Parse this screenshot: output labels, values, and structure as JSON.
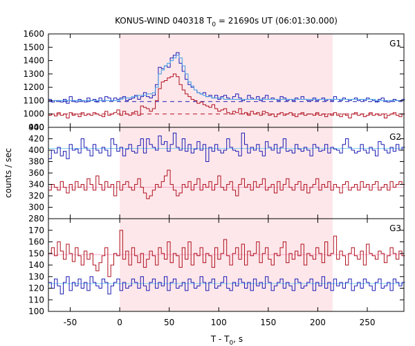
{
  "chart_data": {
    "type": "line",
    "title": {
      "pre": "KONUS-WIND 040318 T",
      "sub": "0",
      "post": " = 21690s UT (06:01:30.000)"
    },
    "xlabel": {
      "pre": "T - T",
      "sub": "0",
      "post": ", s"
    },
    "ylabel": "counts / sec",
    "xlim": [
      -72,
      287
    ],
    "xticks": [
      -50,
      0,
      50,
      100,
      150,
      200,
      250
    ],
    "shaded_interval": [
      0,
      215
    ],
    "shaded_color": "#fde7ea",
    "step": 3,
    "colors": {
      "blue": "#1a1ab4",
      "red": "#b0101e",
      "light_blue": "#3b9be8",
      "light_blue_bg": "#7fd0f0",
      "pink_bg": "#f6a9c8"
    },
    "panels": [
      {
        "label": "G1",
        "ylim": [
          900,
          1600
        ],
        "yticks": [
          900,
          1000,
          1100,
          1200,
          1300,
          1400,
          1500,
          1600
        ],
        "background_levels": [
          {
            "value": 1093,
            "color": "#1a1ab4",
            "dashed": true
          },
          {
            "value": 1000,
            "color": "#b0101e",
            "dashed": true
          }
        ],
        "series": [
          {
            "name": "total",
            "color": "#1a1ab4",
            "start": -72,
            "values": [
              1110,
              1090,
              1100,
              1100,
              1090,
              1110,
              1080,
              1130,
              1100,
              1090,
              1110,
              1100,
              1090,
              1120,
              1100,
              1110,
              1090,
              1120,
              1100,
              1130,
              1120,
              1100,
              1120,
              1110,
              1120,
              1130,
              1100,
              1110,
              1120,
              1140,
              1110,
              1130,
              1160,
              1130,
              1120,
              1140,
              1220,
              1350,
              1340,
              1360,
              1350,
              1420,
              1440,
              1460,
              1380,
              1320,
              1260,
              1220,
              1200,
              1180,
              1160,
              1150,
              1160,
              1130,
              1140,
              1120,
              1140,
              1110,
              1130,
              1140,
              1120,
              1110,
              1130,
              1150,
              1120,
              1100,
              1110,
              1140,
              1120,
              1110,
              1130,
              1100,
              1120,
              1140,
              1110,
              1120,
              1110,
              1100,
              1130,
              1120,
              1100,
              1110,
              1100,
              1120,
              1110,
              1130,
              1110,
              1100,
              1100,
              1120,
              1100,
              1110,
              1120,
              1100,
              1110,
              1100,
              1130,
              1110,
              1100,
              1120,
              1110,
              1100,
              1110,
              1120,
              1100,
              1110,
              1100,
              1120,
              1110,
              1100,
              1090,
              1110,
              1120,
              1100,
              1090,
              1100,
              1110,
              1100,
              1100,
              1110
            ]
          },
          {
            "name": "g1-fit",
            "color": "#3b9be8",
            "start": -72,
            "values": [
              1100,
              1100,
              1100,
              1100,
              1100,
              1100,
              1100,
              1100,
              1100,
              1100,
              1100,
              1100,
              1100,
              1100,
              1100,
              1100,
              1100,
              1100,
              1100,
              1100,
              1100,
              1100,
              1100,
              1100,
              1110,
              1120,
              1120,
              1120,
              1130,
              1130,
              1140,
              1140,
              1140,
              1150,
              1150,
              1160,
              1200,
              1300,
              1330,
              1360,
              1380,
              1400,
              1420,
              1440,
              1420,
              1360,
              1300,
              1240,
              1210,
              1180,
              1160,
              1150,
              1140,
              1130,
              1130,
              1120,
              1120,
              1120,
              1120,
              1110,
              1110,
              1110,
              1110,
              1110,
              1110,
              1110,
              1110,
              1110,
              1110,
              1110,
              1110,
              1110,
              1110,
              1110,
              1110,
              1110,
              1110,
              1110,
              1110,
              1110,
              1110,
              1110,
              1110,
              1110,
              1110,
              1110,
              1110,
              1110,
              1110,
              1110,
              1110,
              1110,
              1110,
              1110,
              1110,
              1110,
              1110,
              1110,
              1110,
              1110,
              1110,
              1110,
              1110,
              1110,
              1110,
              1110,
              1110,
              1110,
              1110,
              1110,
              1100,
              1100,
              1100,
              1100,
              1100,
              1100,
              1100,
              1100,
              1100,
              1100
            ]
          },
          {
            "name": "hard",
            "color": "#b0101e",
            "start": -72,
            "values": [
              990,
              1000,
              985,
              1010,
              990,
              1000,
              970,
              1010,
              990,
              1000,
              980,
              1010,
              990,
              1000,
              990,
              1010,
              1000,
              990,
              980,
              1020,
              990,
              1000,
              1010,
              1030,
              990,
              1020,
              1000,
              990,
              1010,
              1020,
              990,
              1060,
              1050,
              1040,
              1020,
              1040,
              1100,
              1190,
              1240,
              1250,
              1270,
              1280,
              1300,
              1280,
              1220,
              1180,
              1150,
              1130,
              1110,
              1100,
              1080,
              1090,
              1070,
              1060,
              1050,
              1070,
              1040,
              1020,
              1030,
              1040,
              1010,
              1000,
              1020,
              1010,
              1040,
              1000,
              1010,
              990,
              1020,
              1000,
              1010,
              990,
              1020,
              1010,
              990,
              1000,
              980,
              1000,
              1010,
              990,
              1000,
              1010,
              990,
              980,
              1000,
              1010,
              990,
              1000,
              1000,
              990,
              1010,
              990,
              1000,
              980,
              1000,
              990,
              1010,
              990,
              980,
              1000,
              990,
              970,
              1000,
              1010,
              990,
              1000,
              980,
              990,
              1010,
              990,
              1000,
              990,
              1000,
              970,
              990,
              1000,
              1010,
              990,
              980,
              1000
            ]
          }
        ]
      },
      {
        "label": "G2",
        "ylim": [
          280,
          440
        ],
        "yticks": [
          280,
          300,
          320,
          340,
          360,
          380,
          400,
          420,
          440
        ],
        "background_levels": [
          {
            "value": 403,
            "color": "#7fd0f0",
            "dashed": false
          },
          {
            "value": 335,
            "color": "#f6a9c8",
            "dashed": false
          }
        ],
        "series": [
          {
            "name": "g2-blue",
            "color": "#1a1ab4",
            "start": -72,
            "values": [
              385,
              400,
              395,
              405,
              390,
              398,
              385,
              410,
              400,
              402,
              395,
              420,
              405,
              400,
              390,
              410,
              400,
              395,
              405,
              400,
              390,
              420,
              410,
              398,
              405,
              390,
              402,
              410,
              398,
              395,
              408,
              420,
              395,
              420,
              410,
              405,
              400,
              425,
              410,
              415,
              398,
              410,
              430,
              405,
              400,
              420,
              398,
              410,
              395,
              402,
              415,
              400,
              410,
              380,
              405,
              398,
              410,
              400,
              395,
              400,
              420,
              405,
              400,
              398,
              390,
              430,
              410,
              395,
              405,
              400,
              410,
              398,
              390,
              415,
              405,
              400,
              410,
              395,
              405,
              420,
              398,
              400,
              395,
              410,
              402,
              398,
              405,
              400,
              390,
              410,
              405,
              398,
              400,
              410,
              395,
              405,
              402,
              400,
              395,
              410,
              420,
              405,
              400,
              395,
              398,
              410,
              400,
              395,
              405,
              400,
              390,
              415,
              410,
              400,
              395,
              405,
              398,
              410,
              400,
              405
            ]
          },
          {
            "name": "g2-red",
            "color": "#b0101e",
            "start": -72,
            "values": [
              330,
              340,
              335,
              330,
              345,
              335,
              325,
              340,
              330,
              345,
              335,
              340,
              330,
              350,
              340,
              330,
              355,
              340,
              330,
              345,
              335,
              340,
              320,
              345,
              330,
              340,
              345,
              335,
              330,
              340,
              350,
              335,
              325,
              315,
              320,
              330,
              340,
              335,
              345,
              355,
              365,
              340,
              330,
              320,
              325,
              340,
              335,
              345,
              330,
              340,
              350,
              330,
              340,
              335,
              345,
              330,
              340,
              355,
              335,
              330,
              340,
              345,
              330,
              320,
              340,
              350,
              335,
              340,
              330,
              345,
              335,
              340,
              350,
              330,
              335,
              340,
              325,
              345,
              330,
              340,
              350,
              335,
              330,
              340,
              345,
              330,
              340,
              325,
              335,
              340,
              350,
              330,
              340,
              335,
              345,
              330,
              340,
              335,
              325,
              340,
              345,
              330,
              335,
              340,
              330,
              345,
              335,
              340,
              330,
              340,
              345,
              330,
              335,
              340,
              330,
              345,
              335,
              340,
              345,
              340
            ]
          }
        ]
      },
      {
        "label": "G3",
        "ylim": [
          100,
          180
        ],
        "yticks": [
          100,
          110,
          120,
          130,
          140,
          150,
          160,
          170
        ],
        "background_levels": [
          {
            "value": 124,
            "color": "#7fd0f0",
            "dashed": false
          },
          {
            "value": 149,
            "color": "#f6a9c8",
            "dashed": false
          }
        ],
        "series": [
          {
            "name": "g3-red",
            "color": "#b0101e",
            "start": -72,
            "values": [
              150,
              155,
              148,
              160,
              152,
              145,
              158,
              150,
              143,
              155,
              148,
              140,
              152,
              145,
              150,
              140,
              135,
              142,
              148,
              155,
              130,
              140,
              150,
              148,
              170,
              145,
              152,
              140,
              155,
              148,
              142,
              150,
              138,
              145,
              152,
              148,
              140,
              155,
              150,
              145,
              160,
              142,
              150,
              148,
              138,
              155,
              145,
              160,
              140,
              150,
              148,
              155,
              142,
              150,
              148,
              138,
              155,
              145,
              150,
              162,
              148,
              140,
              150,
              155,
              145,
              158,
              140,
              152,
              148,
              150,
              160,
              142,
              150,
              155,
              145,
              140,
              150,
              148,
              155,
              160,
              142,
              150,
              145,
              152,
              148,
              158,
              140,
              150,
              148,
              145,
              155,
              150,
              142,
              160,
              148,
              150,
              165,
              145,
              152,
              148,
              140,
              150,
              155,
              148,
              145,
              152,
              140,
              158,
              150,
              148,
              145,
              152,
              150,
              142,
              148,
              155,
              150,
              145,
              152,
              148
            ]
          },
          {
            "name": "g3-blue",
            "color": "#1a1ab4",
            "start": -72,
            "values": [
              125,
              120,
              128,
              122,
              115,
              125,
              130,
              118,
              125,
              122,
              128,
              120,
              125,
              118,
              130,
              125,
              122,
              120,
              128,
              125,
              115,
              122,
              125,
              128,
              118,
              125,
              120,
              122,
              128,
              125,
              120,
              130,
              122,
              118,
              125,
              128,
              120,
              125,
              122,
              130,
              118,
              125,
              128,
              120,
              122,
              125,
              118,
              128,
              125,
              120,
              122,
              130,
              125,
              118,
              125,
              128,
              120,
              122,
              125,
              130,
              120,
              118,
              125,
              122,
              128,
              125,
              120,
              125,
              118,
              128,
              122,
              125,
              120,
              130,
              125,
              118,
              122,
              125,
              128,
              120,
              125,
              122,
              118,
              128,
              125,
              120,
              122,
              125,
              128,
              118,
              125,
              122,
              130,
              120,
              125,
              118,
              128,
              122,
              125,
              120,
              125,
              128,
              118,
              122,
              125,
              120,
              128,
              125,
              122,
              118,
              125,
              128,
              120,
              122,
              125,
              118,
              128,
              125,
              122,
              125
            ]
          }
        ]
      }
    ]
  }
}
